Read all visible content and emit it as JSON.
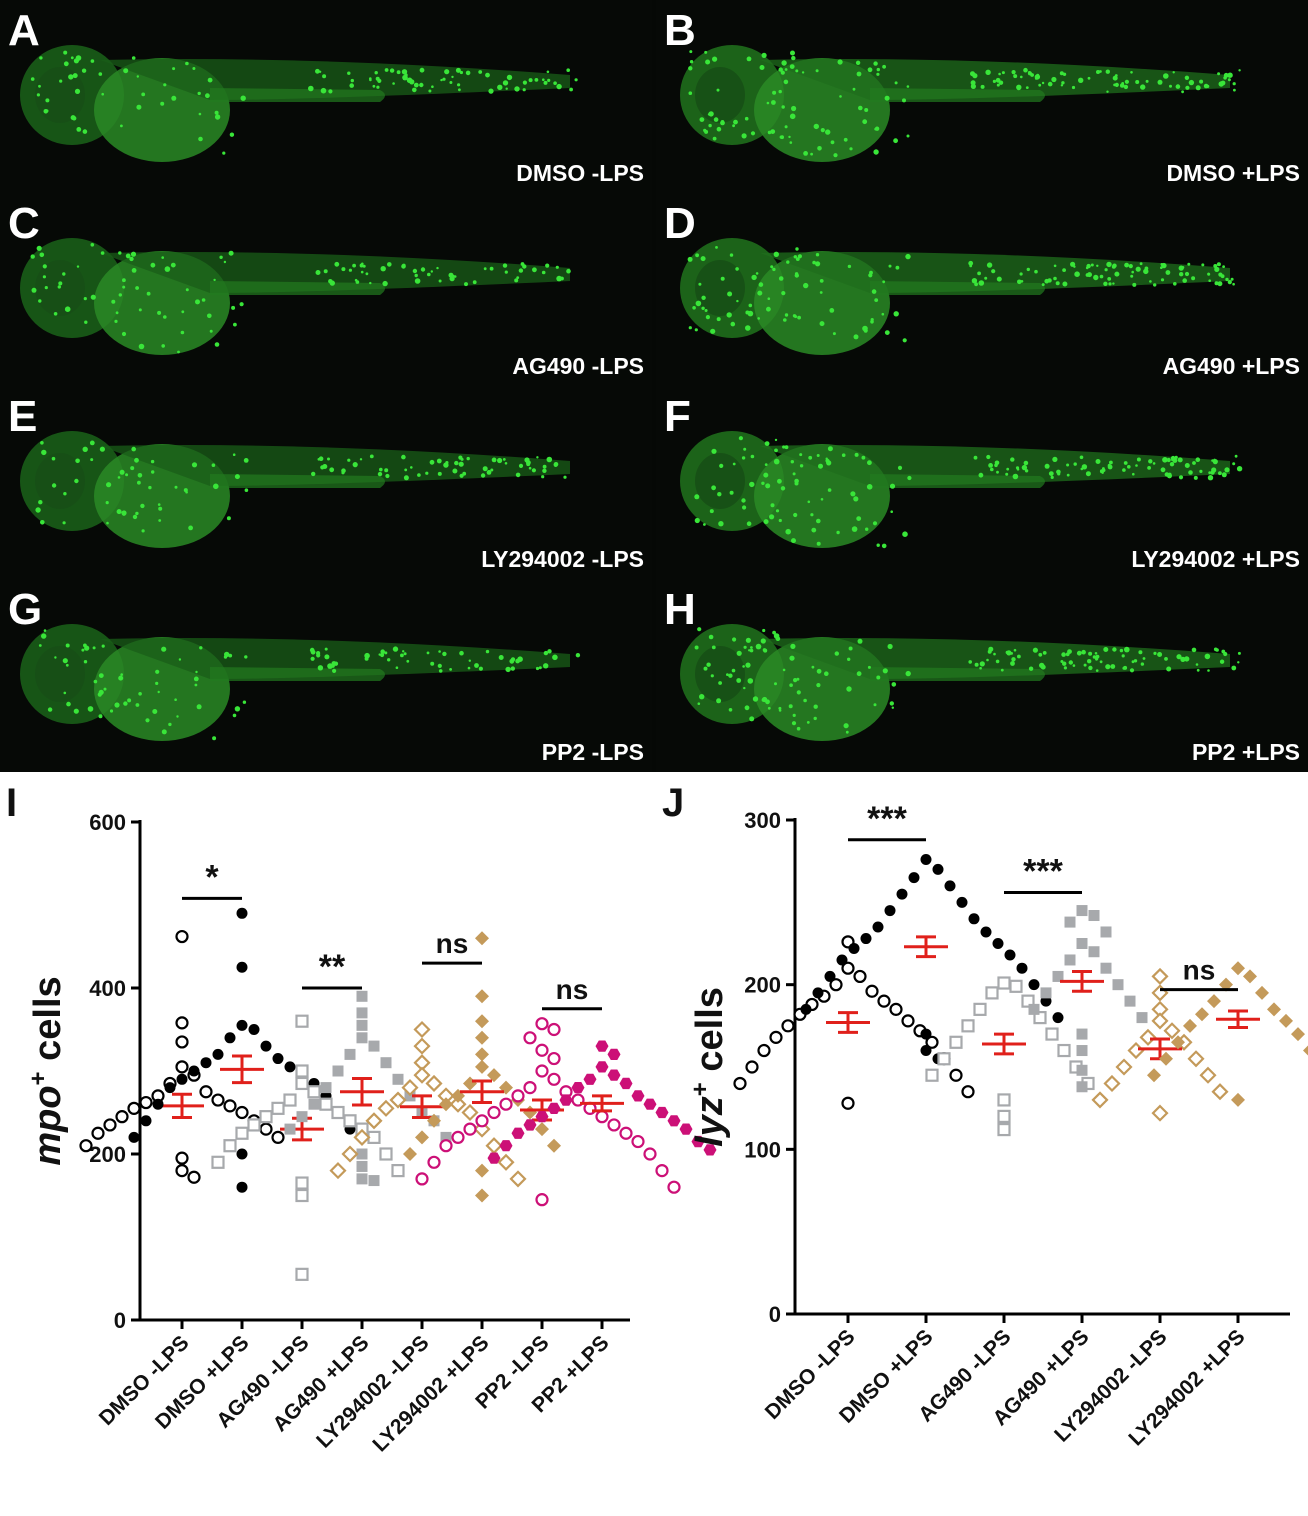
{
  "panels": [
    {
      "letter": "A",
      "label": "DMSO -LPS",
      "variant": "neg"
    },
    {
      "letter": "B",
      "label": "DMSO +LPS",
      "variant": "pos"
    },
    {
      "letter": "C",
      "label": "AG490 -LPS",
      "variant": "neg"
    },
    {
      "letter": "D",
      "label": "AG490 +LPS",
      "variant": "pos"
    },
    {
      "letter": "E",
      "label": "LY294002 -LPS",
      "variant": "neg"
    },
    {
      "letter": "F",
      "label": "LY294002 +LPS",
      "variant": "pos"
    },
    {
      "letter": "G",
      "label": "PP2 -LPS",
      "variant": "neg"
    },
    {
      "letter": "H",
      "label": "PP2 +LPS",
      "variant": "pos"
    }
  ],
  "colors": {
    "fluorescence": "#39e639",
    "mean_sem": "#e0201b",
    "black": "#000000",
    "gray": "#a7a9ac",
    "tan": "#c49a5a",
    "magenta": "#cc1077"
  },
  "chart_data": [
    {
      "panel": "I",
      "type": "scatter",
      "ylabel": "mpo+ cells",
      "ylabel_italic": "mpo",
      "ylabel_sup": "+",
      "ylabel_rest": " cells",
      "ylim": [
        0,
        600
      ],
      "yticks": [
        0,
        200,
        400,
        600
      ],
      "categories": [
        "DMSO -LPS",
        "DMSO +LPS",
        "AG490 -LPS",
        "AG490 +LPS",
        "LY294002 -LPS",
        "LY294002 +LPS",
        "PP2 -LPS",
        "PP2 +LPS"
      ],
      "series": [
        {
          "marker": "circle-open",
          "color": "#000000",
          "mean": 258,
          "sem": 14,
          "values": [
            462,
            358,
            335,
            305,
            295,
            285,
            275,
            270,
            265,
            262,
            258,
            255,
            250,
            245,
            240,
            235,
            230,
            225,
            220,
            210,
            195,
            180,
            172
          ]
        },
        {
          "marker": "circle-filled",
          "color": "#000000",
          "mean": 302,
          "sem": 16,
          "values": [
            490,
            425,
            355,
            350,
            340,
            330,
            320,
            315,
            310,
            305,
            300,
            295,
            290,
            285,
            280,
            270,
            260,
            250,
            240,
            230,
            220,
            200,
            160
          ]
        },
        {
          "marker": "square-open",
          "color": "#a7a9ac",
          "mean": 230,
          "sem": 13,
          "values": [
            360,
            300,
            285,
            275,
            265,
            260,
            255,
            250,
            245,
            240,
            235,
            230,
            225,
            220,
            210,
            200,
            190,
            180,
            165,
            150,
            55
          ]
        },
        {
          "marker": "square-filled",
          "color": "#a7a9ac",
          "mean": 275,
          "sem": 16,
          "values": [
            390,
            370,
            355,
            340,
            330,
            320,
            310,
            300,
            290,
            280,
            270,
            260,
            250,
            245,
            240,
            230,
            220,
            200,
            185,
            170,
            168
          ]
        },
        {
          "marker": "diamond-open",
          "color": "#c49a5a",
          "mean": 257,
          "sem": 13,
          "values": [
            350,
            330,
            310,
            295,
            285,
            280,
            270,
            265,
            260,
            255,
            250,
            240,
            230,
            220,
            210,
            200,
            190,
            180,
            170
          ]
        },
        {
          "marker": "diamond-filled",
          "color": "#c49a5a",
          "mean": 275,
          "sem": 13,
          "values": [
            460,
            390,
            360,
            340,
            320,
            305,
            295,
            285,
            280,
            270,
            265,
            260,
            250,
            240,
            230,
            220,
            210,
            200,
            180,
            150
          ]
        },
        {
          "marker": "circle-open",
          "color": "#cc1077",
          "mean": 253,
          "sem": 12,
          "values": [
            357,
            350,
            340,
            325,
            315,
            300,
            290,
            280,
            275,
            270,
            265,
            260,
            255,
            250,
            245,
            240,
            235,
            230,
            225,
            220,
            215,
            210,
            200,
            190,
            180,
            170,
            160,
            145
          ]
        },
        {
          "marker": "hexagon-filled",
          "color": "#cc1077",
          "mean": 261,
          "sem": 9,
          "values": [
            330,
            320,
            305,
            295,
            290,
            285,
            280,
            270,
            265,
            260,
            255,
            250,
            245,
            240,
            235,
            230,
            225,
            215,
            210,
            205,
            195
          ]
        }
      ],
      "annotations": [
        {
          "text": "*",
          "between": [
            0,
            1
          ],
          "y": 508
        },
        {
          "text": "**",
          "between": [
            2,
            3
          ],
          "y": 400
        },
        {
          "text": "ns",
          "between": [
            4,
            5
          ],
          "y": 430
        },
        {
          "text": "ns",
          "between": [
            6,
            7
          ],
          "y": 375
        }
      ]
    },
    {
      "panel": "J",
      "type": "scatter",
      "ylabel": "lyz+ cells",
      "ylabel_italic": "lyz",
      "ylabel_sup": "+",
      "ylabel_rest": " cells",
      "ylim": [
        0,
        300
      ],
      "yticks": [
        0,
        100,
        200,
        300
      ],
      "categories": [
        "DMSO -LPS",
        "DMSO +LPS",
        "AG490 -LPS",
        "AG490 +LPS",
        "LY294002 -LPS",
        "LY294002 +LPS"
      ],
      "series": [
        {
          "marker": "circle-open",
          "color": "#000000",
          "mean": 177,
          "sem": 6,
          "values": [
            226,
            210,
            205,
            200,
            196,
            193,
            190,
            188,
            185,
            182,
            178,
            175,
            172,
            168,
            165,
            160,
            155,
            150,
            145,
            140,
            135,
            128
          ]
        },
        {
          "marker": "circle-filled",
          "color": "#000000",
          "mean": 223,
          "sem": 6,
          "values": [
            276,
            270,
            265,
            260,
            255,
            250,
            245,
            240,
            235,
            232,
            228,
            225,
            222,
            218,
            215,
            210,
            205,
            200,
            195,
            190,
            185,
            180,
            170,
            160,
            155
          ]
        },
        {
          "marker": "square-open",
          "color": "#a7a9ac",
          "mean": 164,
          "sem": 6,
          "values": [
            201,
            199,
            195,
            190,
            185,
            180,
            175,
            170,
            165,
            160,
            155,
            150,
            145,
            140,
            130,
            120,
            112
          ]
        },
        {
          "marker": "square-filled",
          "color": "#a7a9ac",
          "mean": 202,
          "sem": 6,
          "values": [
            245,
            242,
            238,
            232,
            225,
            220,
            215,
            210,
            205,
            200,
            195,
            190,
            185,
            180,
            170,
            160,
            148,
            138
          ]
        },
        {
          "marker": "diamond-open",
          "color": "#c49a5a",
          "mean": 161,
          "sem": 6,
          "values": [
            205,
            195,
            185,
            178,
            172,
            168,
            165,
            160,
            155,
            150,
            145,
            140,
            135,
            130,
            122
          ]
        },
        {
          "marker": "diamond-filled",
          "color": "#c49a5a",
          "mean": 179,
          "sem": 5,
          "values": [
            210,
            205,
            200,
            195,
            190,
            185,
            182,
            178,
            175,
            170,
            165,
            160,
            155,
            150,
            145,
            140,
            130
          ]
        }
      ],
      "annotations": [
        {
          "text": "***",
          "between": [
            0,
            1
          ],
          "y": 288
        },
        {
          "text": "***",
          "between": [
            2,
            3
          ],
          "y": 256
        },
        {
          "text": "ns",
          "between": [
            4,
            5
          ],
          "y": 197
        }
      ]
    }
  ],
  "panel_letters": {
    "I": "I",
    "J": "J"
  }
}
